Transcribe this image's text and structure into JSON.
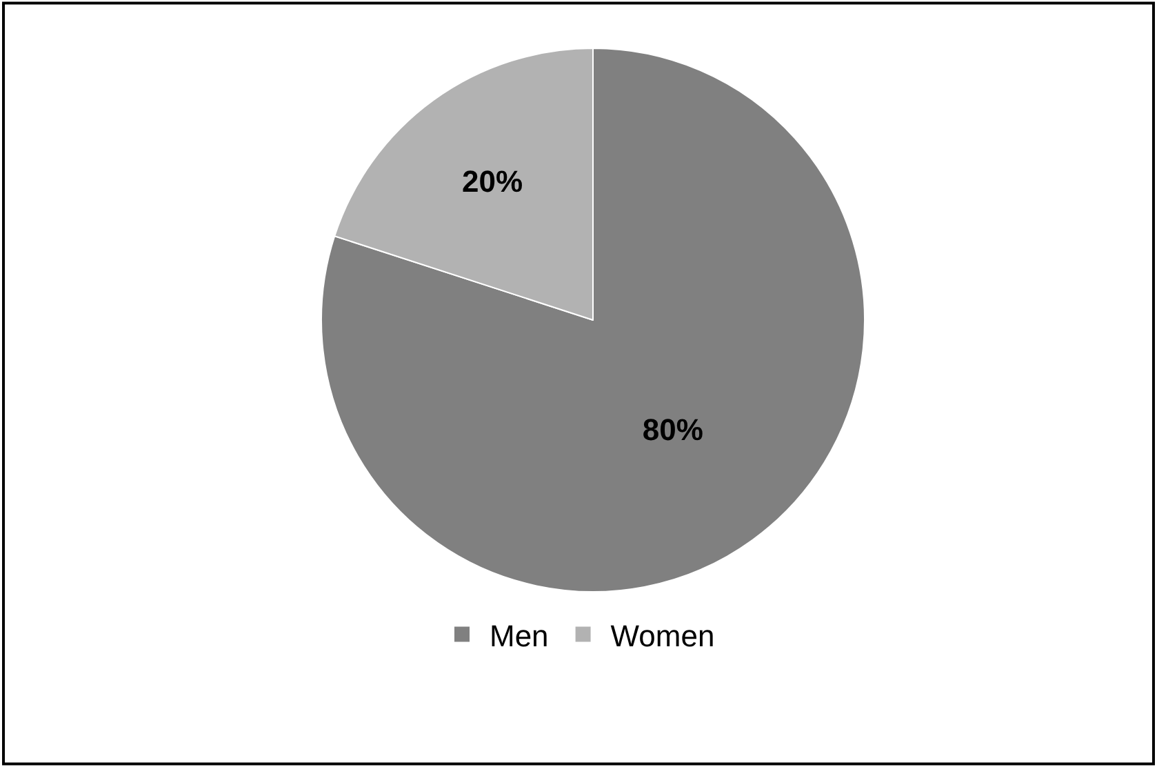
{
  "chart_data": {
    "type": "pie",
    "categories": [
      "Men",
      "Women"
    ],
    "values": [
      80,
      20
    ],
    "colors": [
      "#808080",
      "#b2b2b2"
    ],
    "value_labels": [
      "80%",
      "20%"
    ],
    "legend": "bottom"
  }
}
